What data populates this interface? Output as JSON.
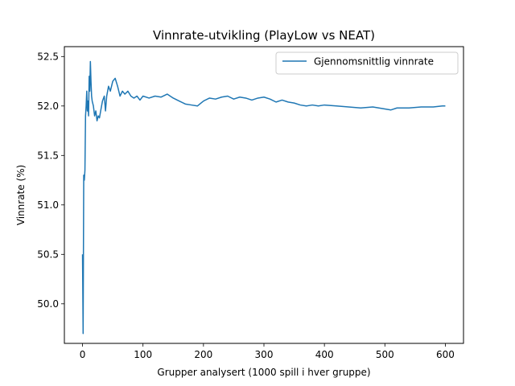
{
  "chart_data": {
    "type": "line",
    "title": "Vinnrate-utvikling (PlayLow vs NEAT)",
    "xlabel": "Grupper analysert (1000 spill i hver gruppe)",
    "ylabel": "Vinnrate (%)",
    "xlim": [
      -30,
      630
    ],
    "ylim": [
      49.6,
      52.6
    ],
    "xticks": [
      0,
      100,
      200,
      300,
      400,
      500,
      600
    ],
    "yticks": [
      50.0,
      50.5,
      51.0,
      51.5,
      52.0,
      52.5
    ],
    "ytick_labels": [
      "50.0",
      "50.5",
      "51.0",
      "51.5",
      "52.0",
      "52.5"
    ],
    "grid": false,
    "legend_position": "top-right",
    "series": [
      {
        "name": "Gjennomsnittlig vinnrate",
        "color": "#1f77b4",
        "x": [
          0,
          1,
          2,
          3,
          4,
          5,
          6,
          7,
          8,
          9,
          10,
          11,
          12,
          13,
          14,
          15,
          16,
          18,
          20,
          22,
          24,
          26,
          28,
          30,
          33,
          36,
          38,
          40,
          43,
          46,
          50,
          54,
          58,
          62,
          66,
          70,
          75,
          80,
          85,
          90,
          95,
          100,
          110,
          120,
          130,
          140,
          150,
          160,
          170,
          180,
          190,
          200,
          210,
          220,
          230,
          240,
          250,
          260,
          270,
          280,
          290,
          300,
          310,
          320,
          330,
          340,
          350,
          360,
          370,
          380,
          390,
          400,
          420,
          440,
          460,
          480,
          500,
          510,
          520,
          540,
          560,
          580,
          595,
          600
        ],
        "y": [
          50.5,
          49.7,
          51.3,
          51.25,
          51.35,
          51.9,
          52.0,
          52.15,
          51.95,
          52.05,
          51.9,
          52.3,
          52.15,
          52.45,
          52.25,
          52.1,
          52.05,
          52.0,
          51.9,
          51.95,
          51.85,
          51.9,
          51.88,
          51.95,
          52.05,
          52.1,
          51.95,
          52.1,
          52.2,
          52.15,
          52.25,
          52.28,
          52.2,
          52.1,
          52.15,
          52.12,
          52.15,
          52.1,
          52.08,
          52.1,
          52.06,
          52.1,
          52.08,
          52.1,
          52.09,
          52.12,
          52.08,
          52.05,
          52.02,
          52.01,
          52.0,
          52.05,
          52.08,
          52.07,
          52.09,
          52.1,
          52.07,
          52.09,
          52.08,
          52.06,
          52.08,
          52.09,
          52.07,
          52.04,
          52.06,
          52.04,
          52.03,
          52.01,
          52.0,
          52.01,
          52.0,
          52.01,
          52.0,
          51.99,
          51.98,
          51.99,
          51.97,
          51.96,
          51.98,
          51.98,
          51.99,
          51.99,
          52.0,
          52.0
        ]
      }
    ]
  }
}
